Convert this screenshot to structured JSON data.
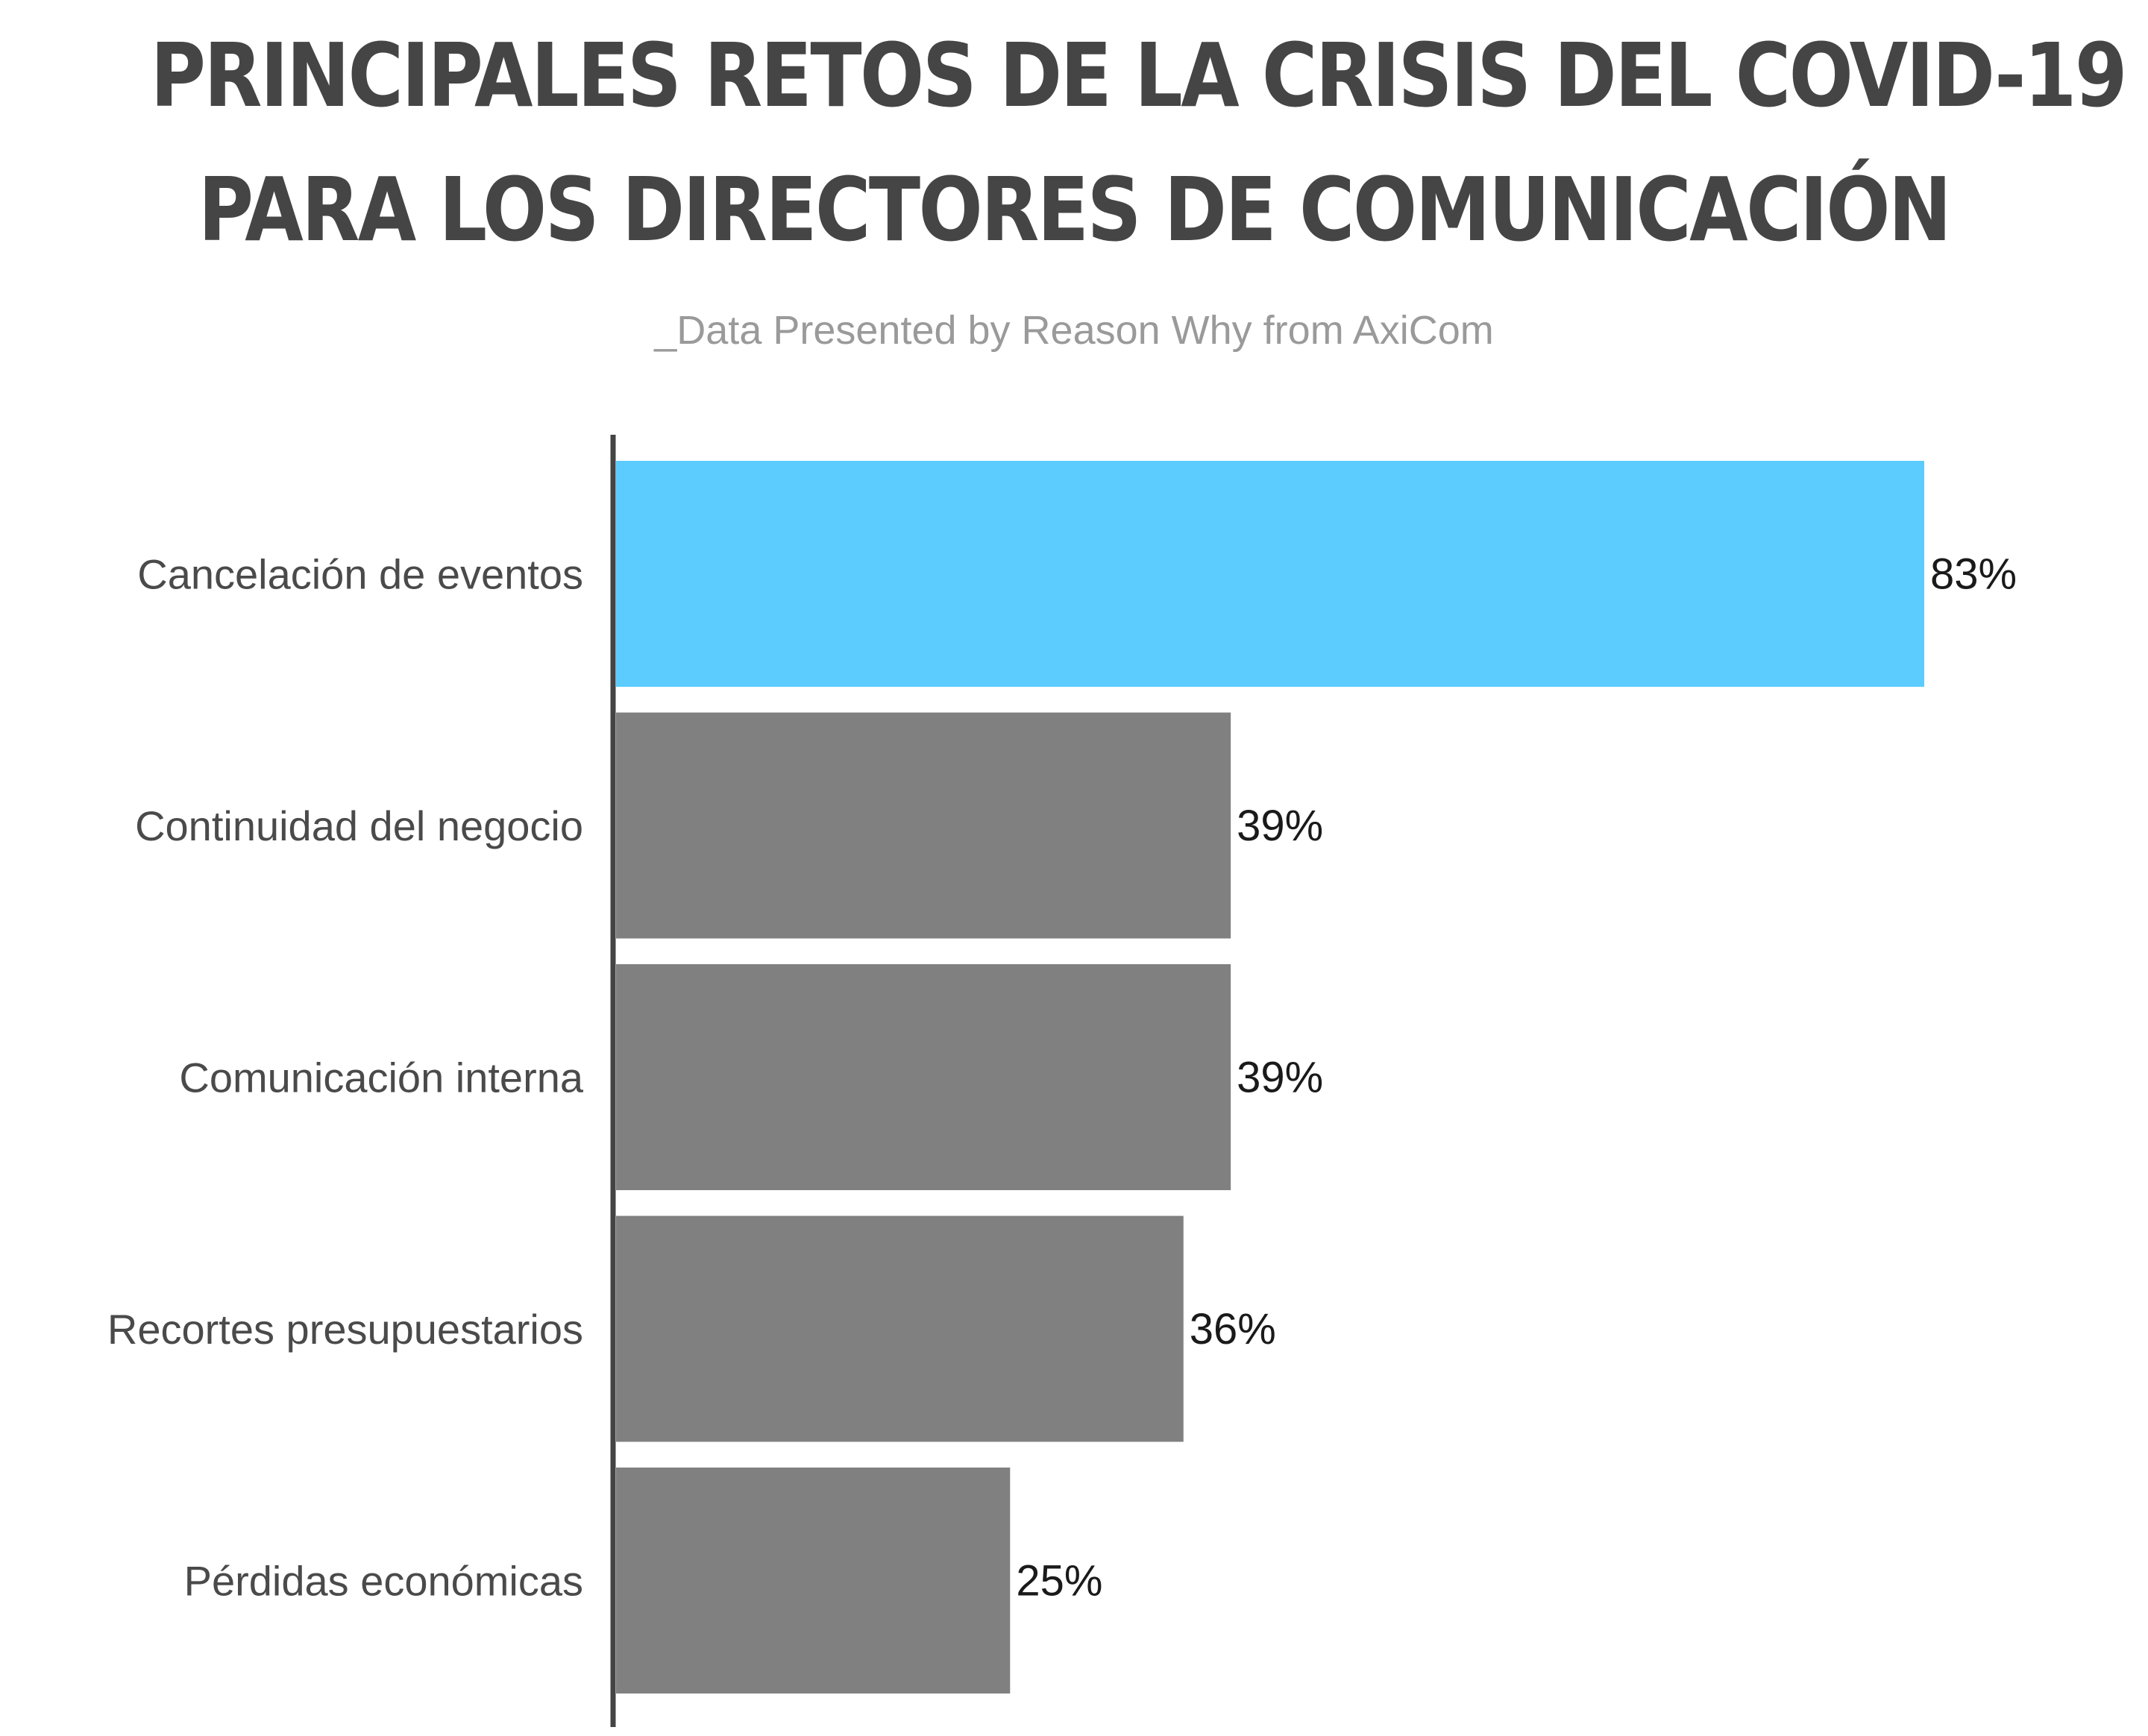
{
  "title_lines": [
    "PRINCIPALES RETOS DE LA CRISIS DEL COVID-19",
    "PARA LOS DIRECTORES DE COMUNICACIÓN"
  ],
  "subtitle": "_Data Presented by Reason Why from AxiCom",
  "colors": {
    "highlight": "#5bccfd",
    "bar": "#808080",
    "axis": "#444444",
    "title": "#454545"
  },
  "chart_data": {
    "type": "bar",
    "orientation": "horizontal",
    "title": "PRINCIPALES RETOS DE LA CRISIS DEL COVID-19 PARA LOS DIRECTORES DE COMUNICACIÓN",
    "subtitle": "_Data Presented by Reason Why from AxiCom",
    "categories": [
      "Cancelación de eventos",
      "Continuidad del negocio",
      "Comunicación interna",
      "Recortes presupuestarios",
      "Pérdidas económicas"
    ],
    "values": [
      83,
      39,
      39,
      36,
      25
    ],
    "value_labels": [
      "83%",
      "39%",
      "39%",
      "36%",
      "25%"
    ],
    "highlighted_index": 0,
    "unit": "%",
    "xlabel": "",
    "ylabel": "",
    "grid": false,
    "legend": "none"
  }
}
